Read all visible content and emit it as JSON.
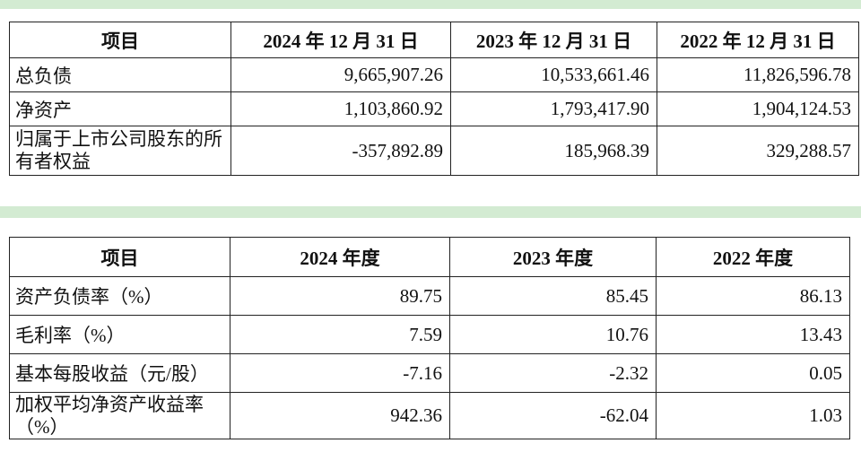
{
  "table1": {
    "headers": [
      "项目",
      "2024 年 12 月 31 日",
      "2023 年 12 月 31 日",
      "2022 年 12 月 31 日"
    ],
    "rows": [
      {
        "label": "总负债",
        "values": [
          "9,665,907.26",
          "10,533,661.46",
          "11,826,596.78"
        ]
      },
      {
        "label": "净资产",
        "values": [
          "1,103,860.92",
          "1,793,417.90",
          "1,904,124.53"
        ]
      },
      {
        "label": "归属于上市公司股东的所有者权益",
        "values": [
          "-357,892.89",
          "185,968.39",
          "329,288.57"
        ]
      }
    ]
  },
  "table2": {
    "headers": [
      "项目",
      "2024 年度",
      "2023 年度",
      "2022 年度"
    ],
    "rows": [
      {
        "label": "资产负债率（%）",
        "values": [
          "89.75",
          "85.45",
          "86.13"
        ]
      },
      {
        "label": "毛利率（%）",
        "values": [
          "7.59",
          "10.76",
          "13.43"
        ]
      },
      {
        "label": "基本每股收益（元/股）",
        "values": [
          "-7.16",
          "-2.32",
          "0.05"
        ]
      },
      {
        "label": "加权平均净资产收益率（%）",
        "values": [
          "942.36",
          "-62.04",
          "1.03"
        ]
      }
    ]
  }
}
